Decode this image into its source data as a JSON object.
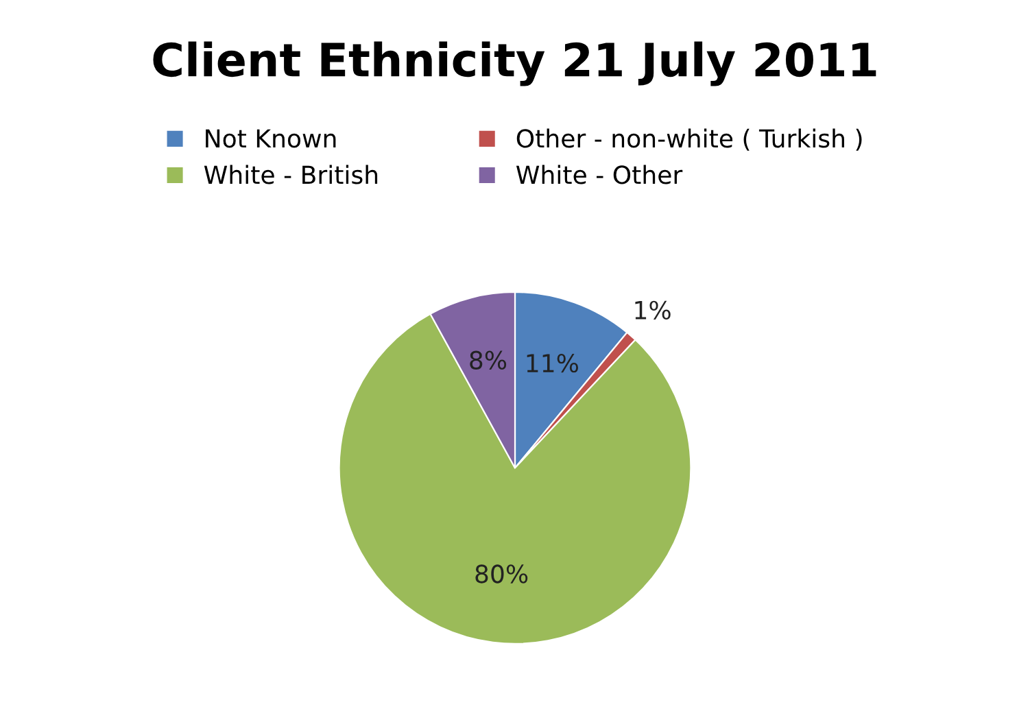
{
  "chart_data": {
    "type": "pie",
    "title": "Client Ethnicity 21 July 2011",
    "categories": [
      "Not Known",
      "Other - non-white ( Turkish )",
      "White - British",
      "White - Other"
    ],
    "values": [
      11,
      1,
      80,
      8
    ],
    "colors": [
      "#4f81bd",
      "#c0504d",
      "#9bbb59",
      "#8064a2"
    ],
    "value_labels": [
      "11%",
      "1%",
      "80%",
      "8%"
    ],
    "legend": "top"
  }
}
